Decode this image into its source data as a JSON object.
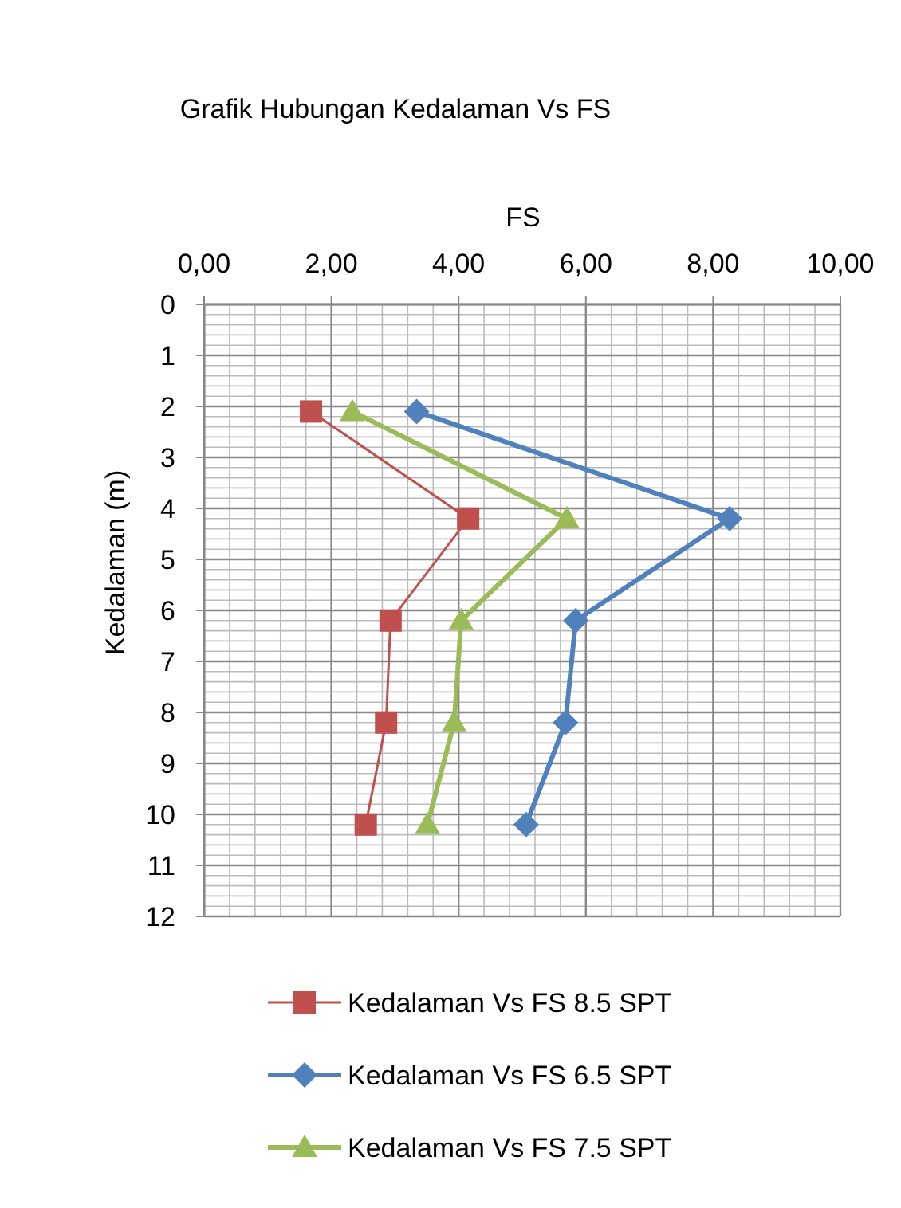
{
  "chart_data": {
    "type": "line",
    "title": "Grafik  Hubungan Kedalaman Vs FS",
    "xlabel": "FS",
    "ylabel": "Kedalaman  (m)",
    "xlim": [
      0,
      10
    ],
    "ylim": [
      12,
      0
    ],
    "xticks": [
      {
        "value": 0,
        "label": "0,00"
      },
      {
        "value": 2,
        "label": "2,00"
      },
      {
        "value": 4,
        "label": "4,00"
      },
      {
        "value": 6,
        "label": "6,00"
      },
      {
        "value": 8,
        "label": "8,00"
      },
      {
        "value": 10,
        "label": "10,00"
      }
    ],
    "yticks": [
      0,
      1,
      2,
      3,
      4,
      5,
      6,
      7,
      8,
      9,
      10,
      11,
      12
    ],
    "grid": true,
    "legend": "bottom",
    "series": [
      {
        "name": "Kedalaman Vs FS 8.5 SPT",
        "color": "#c0504d",
        "marker": "square",
        "x": [
          1.68,
          4.15,
          2.93,
          2.86,
          2.54
        ],
        "values": [
          2.1,
          4.2,
          6.2,
          8.2,
          10.2
        ]
      },
      {
        "name": "Kedalaman Vs FS 6.5 SPT",
        "color": "#4f81bd",
        "marker": "diamond",
        "x": [
          3.34,
          8.26,
          5.84,
          5.68,
          5.06
        ],
        "values": [
          2.1,
          4.2,
          6.2,
          8.2,
          10.2
        ]
      },
      {
        "name": "Kedalaman Vs FS 7.5 SPT",
        "color": "#9bbb59",
        "marker": "triangle",
        "x": [
          2.33,
          5.7,
          4.04,
          3.93,
          3.51
        ],
        "values": [
          2.1,
          4.2,
          6.2,
          8.2,
          10.2
        ]
      }
    ]
  }
}
